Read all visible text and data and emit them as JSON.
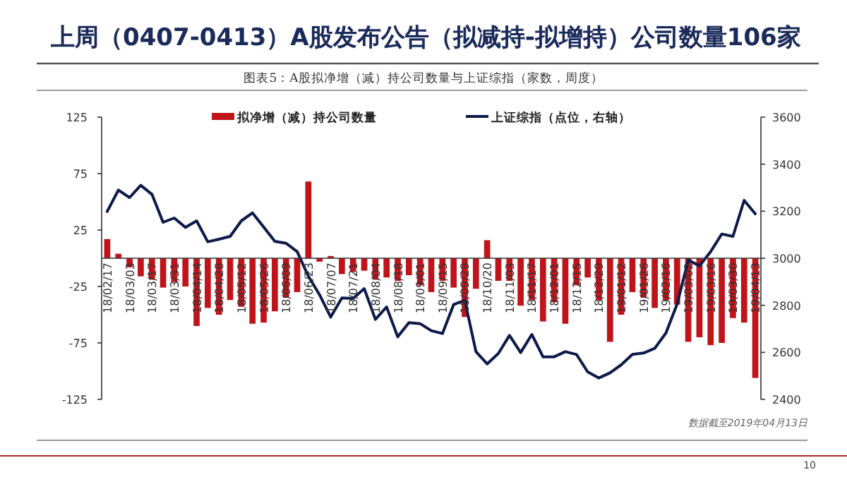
{
  "chart_data": {
    "type": "bar",
    "title": "上周（0407-0413）A股发布公告（拟减持-拟增持）公司数量106家",
    "subtitle": "图表5：A股拟净增（减）持公司数量与上证综指（家数，周度）",
    "categories": [
      "18/02/17",
      null,
      "18/03/03",
      null,
      "18/03/17",
      null,
      "18/03/31",
      null,
      "18/04/14",
      null,
      "18/04/28",
      null,
      "18/05/12",
      null,
      "18/05/26",
      null,
      "18/06/09",
      null,
      "18/06/23",
      null,
      "18/07/07",
      null,
      "18/07/21",
      null,
      "18/08/04",
      null,
      "18/08/18",
      null,
      "18/09/01",
      null,
      "18/09/15",
      null,
      "18/09/29",
      null,
      "18/10/20",
      null,
      "18/11/03",
      null,
      "18/11/17",
      null,
      "18/12/01",
      null,
      "18/12/15",
      null,
      "18/12/29",
      null,
      "19/01/12",
      null,
      "19/01/26",
      null,
      "19/02/16",
      null,
      "19/03/02",
      null,
      "19/03/16",
      null,
      "19/03/30",
      null,
      "19/04/13"
    ],
    "series": [
      {
        "name": "拟净增（减）持公司数量",
        "color": "#c0141b",
        "values": [
          17,
          4,
          -8,
          -16,
          -19,
          -26,
          -21,
          -25,
          -60,
          -44,
          -50,
          -37,
          -43,
          -58,
          -57,
          -47,
          -35,
          -30,
          68,
          -3,
          2,
          -14,
          -12,
          -11,
          -19,
          -17,
          -20,
          -15,
          -24,
          -30,
          -20,
          -26,
          -52,
          -27,
          16,
          -20,
          -20,
          -42,
          -37,
          -56,
          -39,
          -58,
          -24,
          -17,
          -37,
          -74,
          -50,
          -30,
          -35,
          -44,
          -37,
          -41,
          -74,
          -70,
          -77,
          -75,
          -53,
          -57,
          -106
        ]
      },
      {
        "name": "上证综指（点位，右轴）",
        "type": "line",
        "axis": "y2",
        "color": "#0d1a4a",
        "values": [
          3199,
          3290,
          3258,
          3310,
          3272,
          3153,
          3171,
          3131,
          3159,
          3070,
          3081,
          3093,
          3159,
          3193,
          3133,
          3072,
          3064,
          3028,
          2924,
          2845,
          2750,
          2831,
          2829,
          2871,
          2740,
          2793,
          2666,
          2726,
          2722,
          2692,
          2680,
          2803,
          2821,
          2603,
          2551,
          2595,
          2672,
          2599,
          2676,
          2581,
          2581,
          2603,
          2591,
          2517,
          2491,
          2513,
          2547,
          2591,
          2597,
          2617,
          2682,
          2805,
          2992,
          2968,
          3028,
          3103,
          3093,
          3246,
          3189
        ]
      }
    ],
    "ylim": [
      -125,
      125
    ],
    "yticks": [
      125,
      75,
      25,
      -25,
      -75,
      -125
    ],
    "y2lim": [
      2400,
      3600
    ],
    "y2ticks": [
      3600,
      3400,
      3200,
      3000,
      2800,
      2600,
      2400
    ],
    "legend": "top",
    "grid": false,
    "annotations": [
      "数据截至2019年04月13日",
      "10"
    ]
  }
}
